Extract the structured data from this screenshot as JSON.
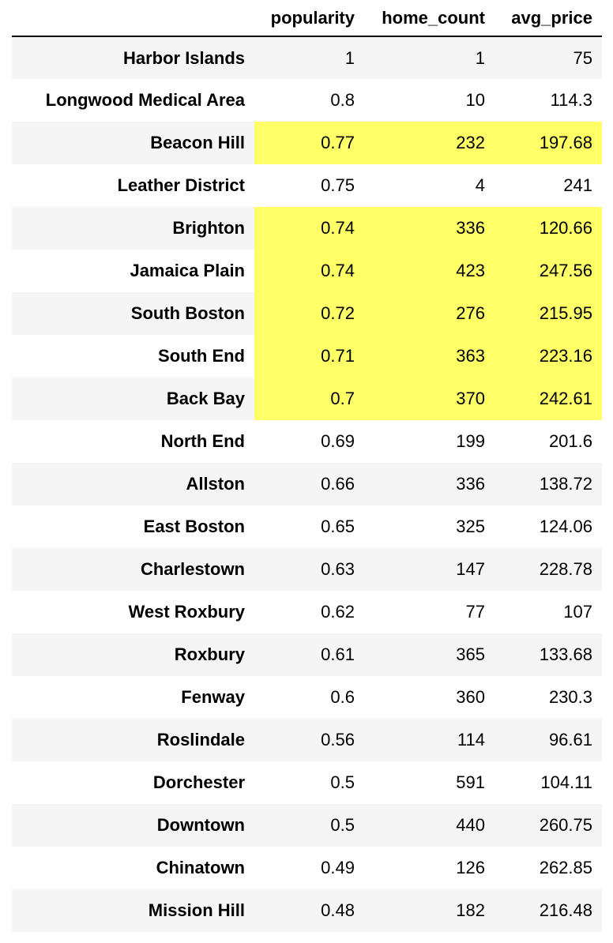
{
  "table": {
    "highlight_color": "#ffff66",
    "index_header": "",
    "columns": [
      "popularity",
      "home_count",
      "avg_price"
    ],
    "rows": [
      {
        "name": "Harbor Islands",
        "values": [
          "1",
          "1",
          "75"
        ],
        "highlighted": false
      },
      {
        "name": "Longwood Medical Area",
        "values": [
          "0.8",
          "10",
          "114.3"
        ],
        "highlighted": false
      },
      {
        "name": "Beacon Hill",
        "values": [
          "0.77",
          "232",
          "197.68"
        ],
        "highlighted": true
      },
      {
        "name": "Leather District",
        "values": [
          "0.75",
          "4",
          "241"
        ],
        "highlighted": false
      },
      {
        "name": "Brighton",
        "values": [
          "0.74",
          "336",
          "120.66"
        ],
        "highlighted": true
      },
      {
        "name": "Jamaica Plain",
        "values": [
          "0.74",
          "423",
          "247.56"
        ],
        "highlighted": true
      },
      {
        "name": "South Boston",
        "values": [
          "0.72",
          "276",
          "215.95"
        ],
        "highlighted": true
      },
      {
        "name": "South End",
        "values": [
          "0.71",
          "363",
          "223.16"
        ],
        "highlighted": true
      },
      {
        "name": "Back Bay",
        "values": [
          "0.7",
          "370",
          "242.61"
        ],
        "highlighted": true
      },
      {
        "name": "North End",
        "values": [
          "0.69",
          "199",
          "201.6"
        ],
        "highlighted": false
      },
      {
        "name": "Allston",
        "values": [
          "0.66",
          "336",
          "138.72"
        ],
        "highlighted": false
      },
      {
        "name": "East Boston",
        "values": [
          "0.65",
          "325",
          "124.06"
        ],
        "highlighted": false
      },
      {
        "name": "Charlestown",
        "values": [
          "0.63",
          "147",
          "228.78"
        ],
        "highlighted": false
      },
      {
        "name": "West Roxbury",
        "values": [
          "0.62",
          "77",
          "107"
        ],
        "highlighted": false
      },
      {
        "name": "Roxbury",
        "values": [
          "0.61",
          "365",
          "133.68"
        ],
        "highlighted": false
      },
      {
        "name": "Fenway",
        "values": [
          "0.6",
          "360",
          "230.3"
        ],
        "highlighted": false
      },
      {
        "name": "Roslindale",
        "values": [
          "0.56",
          "114",
          "96.61"
        ],
        "highlighted": false
      },
      {
        "name": "Dorchester",
        "values": [
          "0.5",
          "591",
          "104.11"
        ],
        "highlighted": false
      },
      {
        "name": "Downtown",
        "values": [
          "0.5",
          "440",
          "260.75"
        ],
        "highlighted": false
      },
      {
        "name": "Chinatown",
        "values": [
          "0.49",
          "126",
          "262.85"
        ],
        "highlighted": false
      },
      {
        "name": "Mission Hill",
        "values": [
          "0.48",
          "182",
          "216.48"
        ],
        "highlighted": false
      }
    ]
  }
}
